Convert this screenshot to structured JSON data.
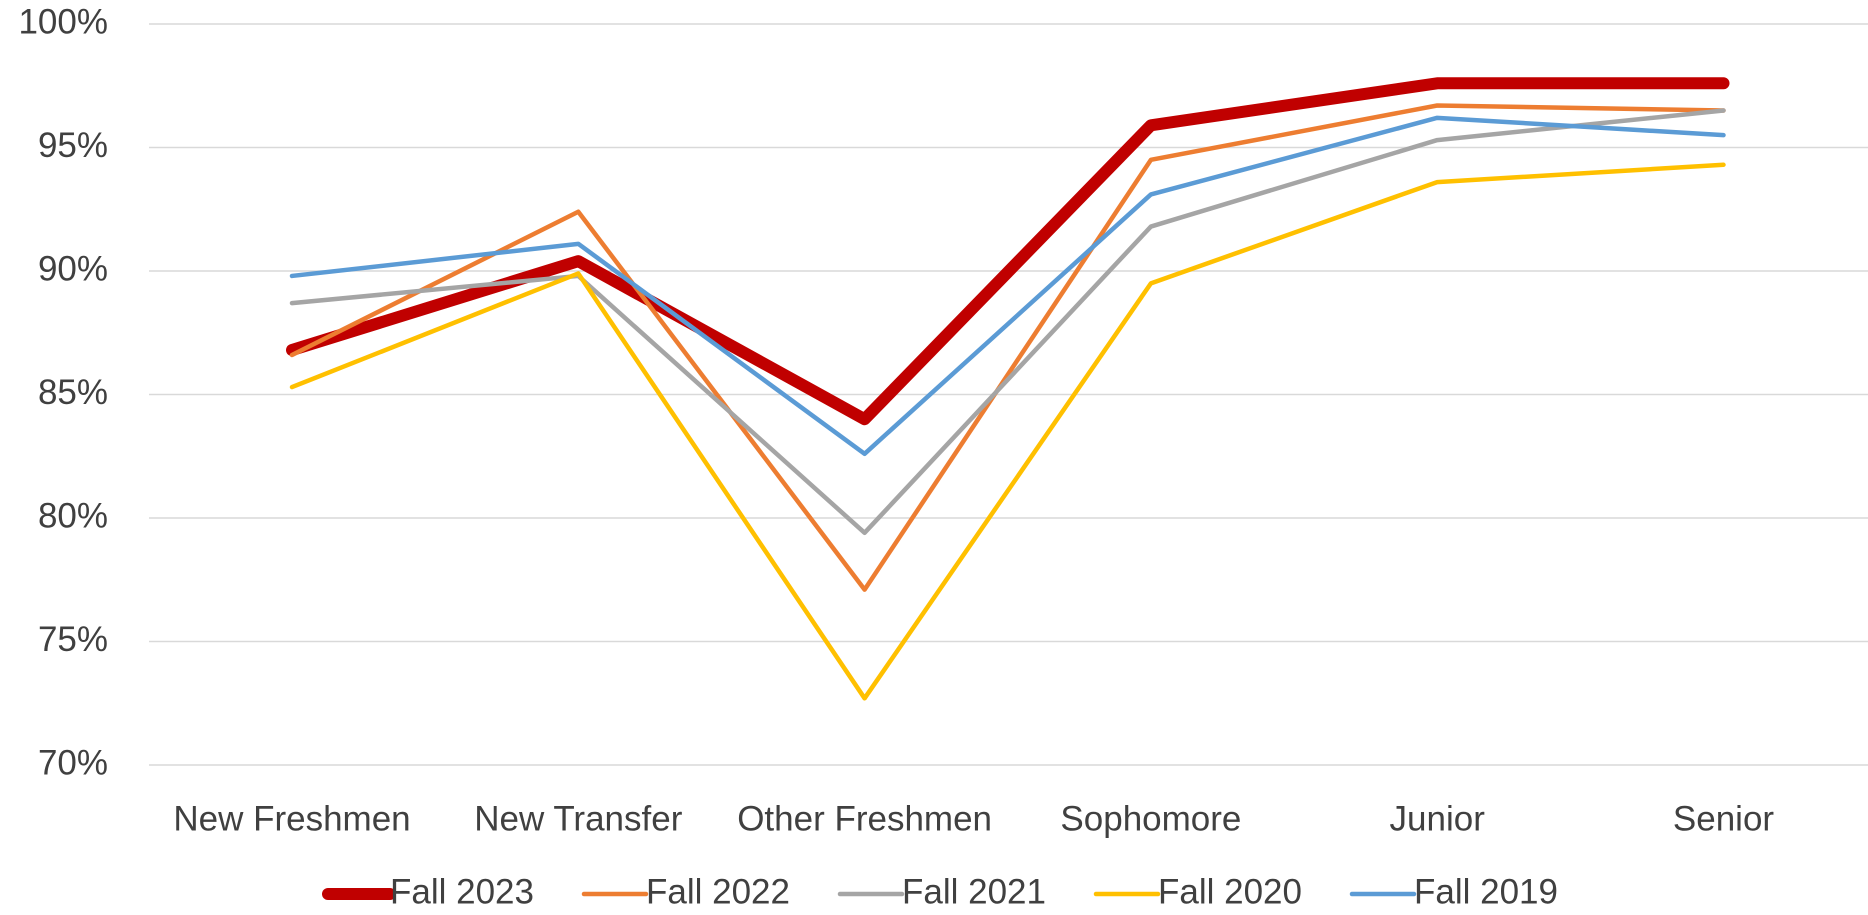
{
  "chart_data": {
    "type": "line",
    "categories": [
      "New Freshmen",
      "New Transfer",
      "Other Freshmen",
      "Sophomore",
      "Junior",
      "Senior"
    ],
    "series": [
      {
        "name": "Fall 2023",
        "color": "#c00000",
        "values": [
          86.8,
          90.4,
          84.0,
          95.9,
          97.6,
          97.6
        ]
      },
      {
        "name": "Fall 2022",
        "color": "#ed7d31",
        "values": [
          86.6,
          92.4,
          77.1,
          94.5,
          96.7,
          96.5
        ]
      },
      {
        "name": "Fall 2021",
        "color": "#a5a5a5",
        "values": [
          88.7,
          89.8,
          79.4,
          91.8,
          95.3,
          96.5
        ]
      },
      {
        "name": "Fall 2020",
        "color": "#ffc000",
        "values": [
          85.3,
          89.9,
          72.7,
          89.5,
          93.6,
          94.3
        ]
      },
      {
        "name": "Fall 2019",
        "color": "#5b9bd5",
        "values": [
          89.8,
          91.1,
          82.6,
          93.1,
          96.2,
          95.5
        ]
      }
    ],
    "ylim": [
      70,
      100
    ],
    "yticks": [
      {
        "value": 70,
        "label": "70%"
      },
      {
        "value": 75,
        "label": "75%"
      },
      {
        "value": 80,
        "label": "80%"
      },
      {
        "value": 85,
        "label": "85%"
      },
      {
        "value": 90,
        "label": "90%"
      },
      {
        "value": 95,
        "label": "95%"
      },
      {
        "value": 100,
        "label": "100%"
      }
    ],
    "grid": true,
    "legend": "bottom"
  }
}
